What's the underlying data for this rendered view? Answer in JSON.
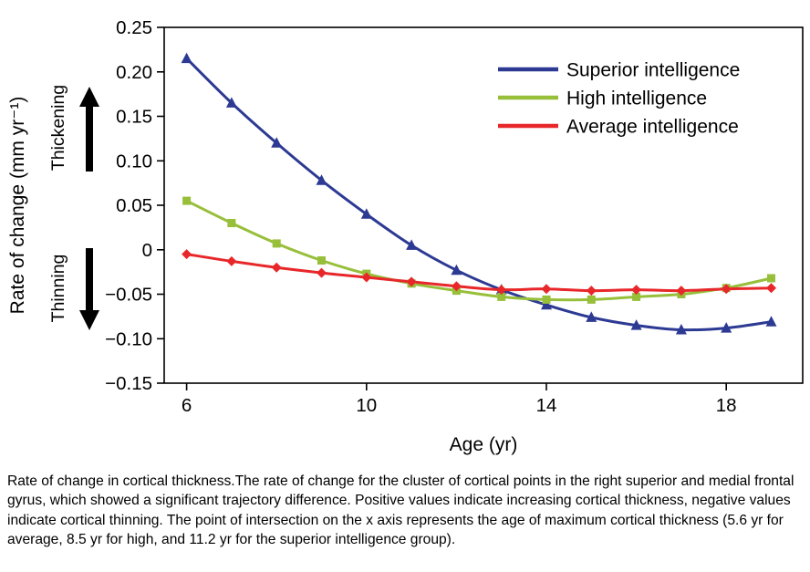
{
  "chart_data": {
    "type": "line",
    "title": "",
    "xlabel": "Age (yr)",
    "ylabel": "Rate of change (mm yr⁻¹)",
    "xlim": [
      5.5,
      19.7
    ],
    "ylim": [
      -0.15,
      0.25
    ],
    "grid": false,
    "legend_position": "top-right-inside",
    "x": [
      6,
      7,
      8,
      9,
      10,
      11,
      12,
      13,
      14,
      15,
      16,
      17,
      18,
      19
    ],
    "xticks": {
      "values": [
        6,
        10,
        14,
        18
      ],
      "labels": [
        "6",
        "10",
        "14",
        "18"
      ]
    },
    "yticks": {
      "values": [
        0.25,
        0.2,
        0.15,
        0.1,
        0.05,
        0,
        -0.05,
        -0.1,
        -0.15
      ],
      "labels": [
        "0.25",
        "0.20",
        "0.15",
        "0.10",
        "0.05",
        "0",
        "−0.05",
        "−0.10",
        "−0.15"
      ]
    },
    "series": [
      {
        "name": "Superior intelligence",
        "color": "#2d3a93",
        "marker": "triangle",
        "values": [
          0.215,
          0.165,
          0.12,
          0.078,
          0.04,
          0.005,
          -0.023,
          -0.045,
          -0.062,
          -0.076,
          -0.085,
          -0.09,
          -0.088,
          -0.081
        ]
      },
      {
        "name": "High intelligence",
        "color": "#97bf3a",
        "marker": "square",
        "values": [
          0.055,
          0.03,
          0.007,
          -0.012,
          -0.027,
          -0.038,
          -0.046,
          -0.053,
          -0.056,
          -0.056,
          -0.053,
          -0.05,
          -0.043,
          -0.032
        ]
      },
      {
        "name": "Average intelligence",
        "color": "#e8272a",
        "marker": "diamond",
        "values": [
          -0.005,
          -0.013,
          -0.02,
          -0.026,
          -0.031,
          -0.036,
          -0.041,
          -0.045,
          -0.044,
          -0.046,
          -0.045,
          -0.046,
          -0.044,
          -0.043
        ]
      }
    ],
    "annotations": {
      "thickening": "Thickening",
      "thinning": "Thinning"
    }
  },
  "caption": {
    "text": "Rate of change in cortical thickness.The rate of change for the cluster of cortical points in the right superior and medial frontal gyrus, which showed a significant trajectory difference. Positive values indicate increasing cortical thickness, negative values indicate cortical thinning. The point of intersection on the x axis represents the age of maximum cortical thickness (5.6 yr for average, 8.5 yr for high, and 11.2 yr for the superior intelligence group)."
  },
  "colors": {
    "axis": "#000000",
    "background": "#ffffff"
  }
}
